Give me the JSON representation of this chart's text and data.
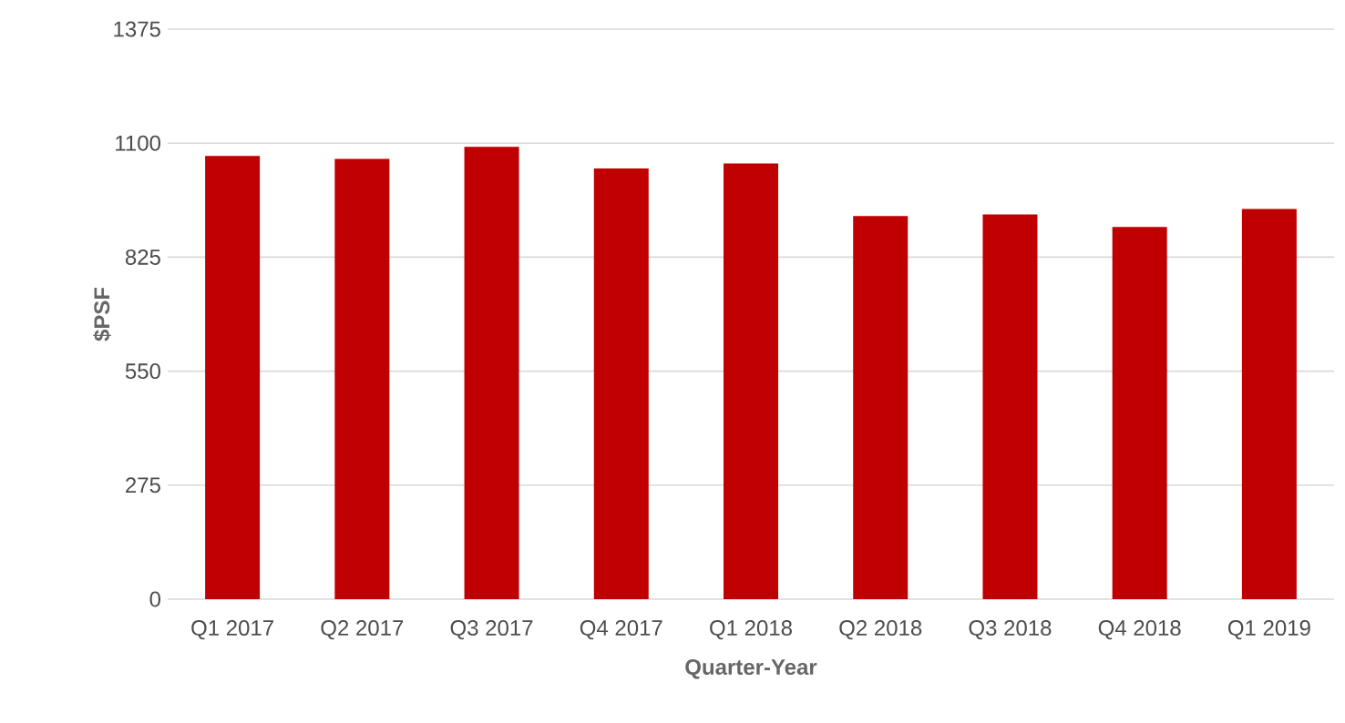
{
  "chart_data": {
    "type": "bar",
    "xlabel": "Quarter-Year",
    "ylabel": "$PSF",
    "categories": [
      "Q1 2017",
      "Q2 2017",
      "Q3 2017",
      "Q4 2017",
      "Q1 2018",
      "Q2 2018",
      "Q3 2018",
      "Q4 2018",
      "Q1 2019"
    ],
    "values": [
      1069,
      1062,
      1091,
      1039,
      1051,
      924,
      928,
      898,
      941
    ],
    "color": "#c00000",
    "ylim": [
      0,
      1375
    ],
    "yticks": [
      0,
      275,
      550,
      825,
      1100,
      1375
    ],
    "grid": "y"
  }
}
